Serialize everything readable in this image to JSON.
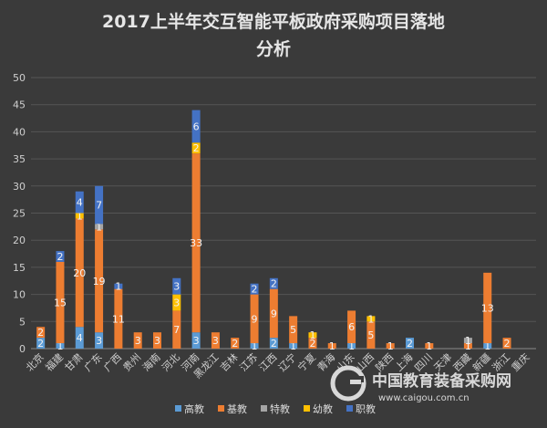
{
  "chart_data": {
    "type": "bar",
    "stacked": true,
    "title_line1": "2017上半年交互智能平板政府采购项目落地",
    "title_line2": "分析",
    "categories": [
      "北京",
      "福建",
      "甘肃",
      "广东",
      "广西",
      "贵州",
      "海南",
      "河北",
      "河南",
      "黑龙江",
      "吉林",
      "江苏",
      "江西",
      "辽宁",
      "宁夏",
      "青海",
      "山东",
      "山西",
      "陕西",
      "上海",
      "四川",
      "天津",
      "西藏",
      "新疆",
      "浙江",
      "重庆"
    ],
    "series": [
      {
        "name": "高教",
        "color": "#5b9bd5",
        "values": [
          2,
          1,
          4,
          3,
          0,
          0,
          0,
          0,
          3,
          0,
          0,
          1,
          2,
          1,
          0,
          0,
          1,
          0,
          0,
          2,
          0,
          0,
          0,
          1,
          0,
          0
        ]
      },
      {
        "name": "基教",
        "color": "#ed7d31",
        "values": [
          2,
          15,
          20,
          19,
          11,
          3,
          3,
          7,
          33,
          3,
          2,
          9,
          9,
          5,
          2,
          1,
          6,
          5,
          1,
          0,
          1,
          0,
          1,
          13,
          2,
          0
        ]
      },
      {
        "name": "特教",
        "color": "#a5a5a5",
        "values": [
          0,
          0,
          0,
          1,
          0,
          0,
          0,
          0,
          0,
          0,
          0,
          0,
          0,
          0,
          0,
          0,
          0,
          0,
          0,
          0,
          0,
          0,
          1,
          0,
          0,
          0
        ]
      },
      {
        "name": "幼教",
        "color": "#ffc000",
        "values": [
          0,
          0,
          1,
          0,
          0,
          0,
          0,
          3,
          2,
          0,
          0,
          0,
          0,
          0,
          1,
          0,
          0,
          1,
          0,
          0,
          0,
          0,
          0,
          0,
          0,
          0
        ]
      },
      {
        "name": "职教",
        "color": "#4472c4",
        "values": [
          0,
          2,
          4,
          7,
          1,
          0,
          0,
          3,
          6,
          0,
          0,
          2,
          2,
          0,
          0,
          0,
          0,
          0,
          0,
          0,
          0,
          0,
          0,
          0,
          0,
          0
        ]
      }
    ],
    "ylim": [
      0,
      50
    ],
    "yticks": [
      0,
      5,
      10,
      15,
      20,
      25,
      30,
      35,
      40,
      45,
      50
    ],
    "grid": true,
    "legend_position": "bottom"
  },
  "watermark": {
    "text": "中国教育装备采购网",
    "url": "www.caigou.com.cn"
  }
}
